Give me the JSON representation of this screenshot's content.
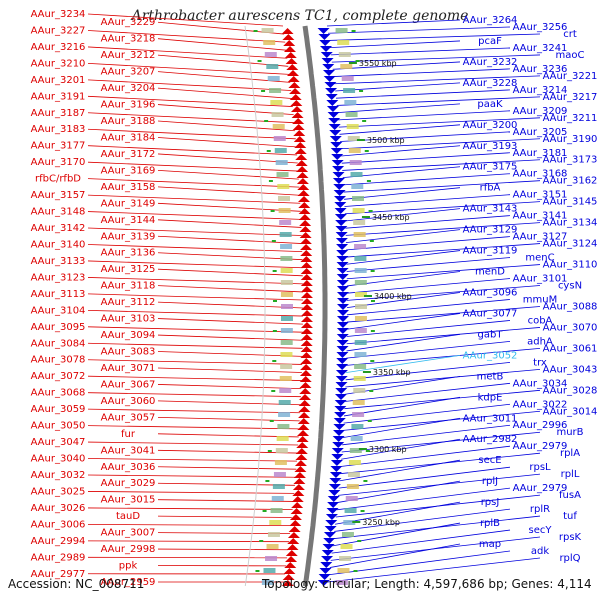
{
  "title": "Arthrobacter aurescens TC1, complete genome",
  "accession": "Accession: NC_008711",
  "info": "Topology: circular; Length: 4,597,686 bp; Genes: 4,114",
  "colors": {
    "minus": "#dd0000",
    "plus": "#0000dd",
    "highlight": "#33bbee"
  },
  "scale": [
    "3550 kbp",
    "3500 kbp",
    "3450 kbp",
    "3400 kbp",
    "3350 kbp",
    "3300 kbp",
    "3250 kbp"
  ],
  "left_labels": [
    "AAur_3234",
    "AAur_3229",
    "AAur_3227",
    "AAur_3218",
    "AAur_3216",
    "AAur_3212",
    "AAur_3210",
    "AAur_3207",
    "AAur_3201",
    "AAur_3204",
    "AAur_3191",
    "AAur_3196",
    "AAur_3187",
    "AAur_3188",
    "AAur_3183",
    "AAur_3184",
    "AAur_3177",
    "AAur_3172",
    "AAur_3170",
    "AAur_3169",
    "rfbC/rfbD",
    "AAur_3158",
    "AAur_3157",
    "AAur_3149",
    "AAur_3148",
    "AAur_3144",
    "AAur_3142",
    "AAur_3139",
    "AAur_3140",
    "AAur_3136",
    "AAur_3133",
    "AAur_3125",
    "AAur_3123",
    "AAur_3118",
    "AAur_3113",
    "AAur_3112",
    "AAur_3104",
    "AAur_3103",
    "AAur_3095",
    "AAur_3094",
    "AAur_3084",
    "AAur_3083",
    "AAur_3078",
    "AAur_3071",
    "AAur_3072",
    "AAur_3067",
    "AAur_3068",
    "AAur_3060",
    "AAur_3059",
    "AAur_3057",
    "AAur_3050",
    "fur",
    "AAur_3047",
    "AAur_3041",
    "AAur_3040",
    "AAur_3036",
    "AAur_3032",
    "AAur_3029",
    "AAur_3025",
    "AAur_3015",
    "AAur_3026",
    "tauD",
    "AAur_3006",
    "AAur_3007",
    "AAur_2994",
    "AAur_2998",
    "AAur_2989",
    "ppk",
    "AAur_2977",
    "AAur_2959"
  ],
  "right_labels": [
    "AAur_3264",
    "AAur_3256",
    "crt",
    "pcaF",
    "AAur_3241",
    "maoC",
    "AAur_3232",
    "AAur_3236",
    "AAur_3221",
    "AAur_3228",
    "AAur_3214",
    "AAur_3217",
    "paaK",
    "AAur_3209",
    "AAur_3211",
    "AAur_3200",
    "AAur_3205",
    "AAur_3190",
    "AAur_3193",
    "AAur_3181",
    "AAur_3173",
    "AAur_3175",
    "AAur_3168",
    "AAur_3162",
    "rfbA",
    "AAur_3151",
    "AAur_3145",
    "AAur_3143",
    "AAur_3141",
    "AAur_3134",
    "AAur_3129",
    "AAur_3127",
    "AAur_3124",
    "AAur_3119",
    "menC",
    "AAur_3110",
    "menD",
    "AAur_3101",
    "cysN",
    "AAur_3096",
    "mmuM",
    "AAur_3088",
    "AAur_3077",
    "cobA",
    "AAur_3070",
    "gabT",
    "adhA",
    "AAur_3061",
    "AAur_3052",
    "trx",
    "AAur_3043",
    "metB",
    "AAur_3034",
    "AAur_3028",
    "kdpE",
    "AAur_3022",
    "AAur_3014",
    "AAur_3011",
    "AAur_2996",
    "murB",
    "AAur_2982",
    "AAur_2979",
    "rplA",
    "secE",
    "rpsL",
    "rplL",
    "rplJ",
    "AAur_2979",
    "fusA",
    "rpsJ",
    "rplR",
    "tuf",
    "rplB",
    "secY",
    "rpsK",
    "map",
    "adk",
    "rplQ"
  ]
}
